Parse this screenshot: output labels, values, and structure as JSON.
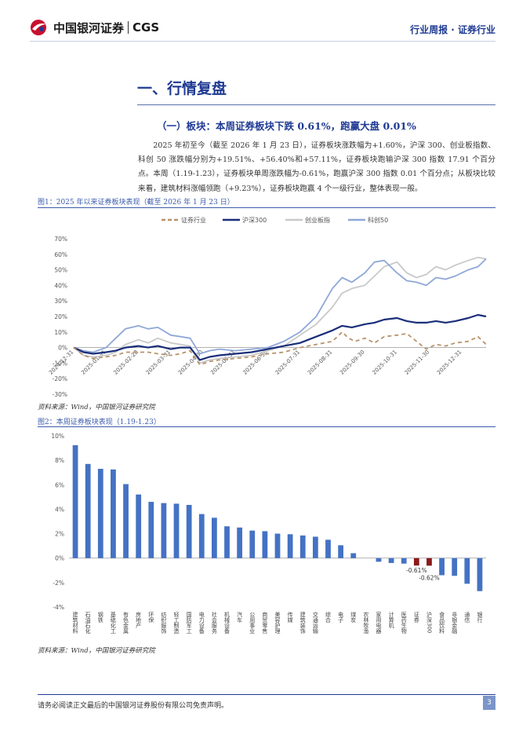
{
  "header": {
    "company_cn": "中国银河证券",
    "company_en": "CGS",
    "report_type": "行业周报 · 证券行业"
  },
  "section": {
    "title": "一、行情复盘",
    "subtitle": "（一）板块：本周证券板块下跌 0.61%，跑赢大盘 0.01%",
    "paragraph": "2025 年初至今（截至 2026 年 1 月 23 日），证券板块涨跌幅为+1.60%，沪深 300、创业板指数、科创 50 涨跌幅分别为+19.51%、+56.40%和+57.11%，证券板块跑输沪深 300 指数 17.91 个百分点。本周（1.19-1.23），证券板块单周涨跌幅为-0.61%，跑赢沪深 300 指数 0.01 个百分点；从板块比较来看，建筑材料涨幅领跑（+9.23%），证券板块跑赢 4 个一级行业，整体表现一般。"
  },
  "figure1": {
    "title": "图1：2025 年以来证券板块表现（截至 2026 年 1 月 23 日）",
    "source": "资料来源：Wind，中国银河证券研究院",
    "chart_data": {
      "type": "line",
      "title": "",
      "x": [
        "2024-12-31",
        "2025-01-31",
        "2025-02-28",
        "2025-03-31",
        "2025-04-30",
        "2025-05-31",
        "2025-06-30",
        "2025-07-31",
        "2025-08-31",
        "2025-09-30",
        "2025-10-31",
        "2025-11-30",
        "2025-12-31"
      ],
      "x_tick_labels": [
        "2024-12-31",
        "2025-01-31",
        "2025-02-28",
        "2025-03-31",
        "2025-04-30",
        "2025-05-31",
        "2025-06-30",
        "2025-07-31",
        "2025-08-31",
        "2025-09-30",
        "2025-10-31",
        "2025-11-30",
        "2025-12-31"
      ],
      "ylim": [
        -30,
        70
      ],
      "y_ticks": [
        "70%",
        "60%",
        "50%",
        "40%",
        "30%",
        "20%",
        "10%",
        "0%",
        "-10%",
        "-20%",
        "-30%"
      ],
      "x_range": [
        0,
        12.75
      ],
      "series": [
        {
          "name": "证券行业",
          "color": "#b8946a",
          "dash": true,
          "points": [
            [
              0,
              0
            ],
            [
              0.3,
              -5
            ],
            [
              0.6,
              -7
            ],
            [
              1,
              -6
            ],
            [
              1.3,
              -5
            ],
            [
              1.6,
              -3
            ],
            [
              2,
              -3
            ],
            [
              2.3,
              -3
            ],
            [
              2.6,
              -4
            ],
            [
              3,
              -5
            ],
            [
              3.3,
              -4
            ],
            [
              3.6,
              -2
            ],
            [
              3.9,
              -11
            ],
            [
              4.2,
              -9
            ],
            [
              4.5,
              -8
            ],
            [
              5,
              -7
            ],
            [
              5.5,
              -6
            ],
            [
              6,
              -4
            ],
            [
              6.5,
              -3
            ],
            [
              7,
              0
            ],
            [
              7.5,
              2
            ],
            [
              8,
              4
            ],
            [
              8.3,
              10
            ],
            [
              8.5,
              6
            ],
            [
              8.7,
              4
            ],
            [
              9,
              6
            ],
            [
              9.3,
              3
            ],
            [
              9.6,
              7
            ],
            [
              10,
              8
            ],
            [
              10.3,
              9
            ],
            [
              10.6,
              4
            ],
            [
              10.9,
              -1
            ],
            [
              11.2,
              2
            ],
            [
              11.5,
              1
            ],
            [
              11.8,
              3
            ],
            [
              12.2,
              4
            ],
            [
              12.5,
              7
            ],
            [
              12.75,
              2
            ]
          ]
        },
        {
          "name": "沪深300",
          "color": "#1a2e7a",
          "dash": false,
          "points": [
            [
              0,
              0
            ],
            [
              0.3,
              -3
            ],
            [
              0.6,
              -4
            ],
            [
              1,
              -3
            ],
            [
              1.3,
              -2
            ],
            [
              1.6,
              0
            ],
            [
              2,
              1
            ],
            [
              2.3,
              0
            ],
            [
              2.6,
              1
            ],
            [
              3,
              -1
            ],
            [
              3.3,
              0
            ],
            [
              3.6,
              0
            ],
            [
              3.9,
              -8
            ],
            [
              4.2,
              -6
            ],
            [
              4.5,
              -5
            ],
            [
              5,
              -4
            ],
            [
              5.5,
              -3
            ],
            [
              6,
              -1
            ],
            [
              6.5,
              1
            ],
            [
              7,
              3
            ],
            [
              7.5,
              7
            ],
            [
              8,
              11
            ],
            [
              8.3,
              14
            ],
            [
              8.6,
              13
            ],
            [
              9,
              15
            ],
            [
              9.3,
              16
            ],
            [
              9.6,
              18
            ],
            [
              10,
              19
            ],
            [
              10.3,
              17
            ],
            [
              10.6,
              16
            ],
            [
              10.9,
              16
            ],
            [
              11.2,
              17
            ],
            [
              11.5,
              16
            ],
            [
              11.8,
              17
            ],
            [
              12.2,
              19
            ],
            [
              12.5,
              21
            ],
            [
              12.75,
              20
            ]
          ]
        },
        {
          "name": "创业板指",
          "color": "#c9c9c9",
          "dash": false,
          "points": [
            [
              0,
              0
            ],
            [
              0.3,
              -5
            ],
            [
              0.6,
              -6
            ],
            [
              1,
              -5
            ],
            [
              1.3,
              -3
            ],
            [
              1.6,
              2
            ],
            [
              2,
              5
            ],
            [
              2.3,
              3
            ],
            [
              2.6,
              6
            ],
            [
              3,
              3
            ],
            [
              3.3,
              2
            ],
            [
              3.6,
              1
            ],
            [
              3.9,
              -10
            ],
            [
              4.2,
              -8
            ],
            [
              4.5,
              -7
            ],
            [
              5,
              -6
            ],
            [
              5.5,
              -5
            ],
            [
              6,
              -2
            ],
            [
              6.5,
              1
            ],
            [
              7,
              8
            ],
            [
              7.5,
              15
            ],
            [
              8,
              26
            ],
            [
              8.3,
              35
            ],
            [
              8.6,
              38
            ],
            [
              9,
              40
            ],
            [
              9.3,
              46
            ],
            [
              9.6,
              52
            ],
            [
              10,
              55
            ],
            [
              10.3,
              48
            ],
            [
              10.6,
              45
            ],
            [
              10.9,
              47
            ],
            [
              11.2,
              52
            ],
            [
              11.5,
              50
            ],
            [
              11.8,
              53
            ],
            [
              12.2,
              56
            ],
            [
              12.5,
              58
            ],
            [
              12.75,
              57
            ]
          ]
        },
        {
          "name": "科创50",
          "color": "#8fa8d8",
          "dash": false,
          "points": [
            [
              0,
              0
            ],
            [
              0.3,
              -2
            ],
            [
              0.6,
              -3
            ],
            [
              1,
              0
            ],
            [
              1.3,
              6
            ],
            [
              1.6,
              12
            ],
            [
              2,
              14
            ],
            [
              2.3,
              12
            ],
            [
              2.6,
              13
            ],
            [
              3,
              8
            ],
            [
              3.3,
              7
            ],
            [
              3.6,
              6
            ],
            [
              3.9,
              -4
            ],
            [
              4.2,
              -2
            ],
            [
              4.5,
              -1
            ],
            [
              5,
              -2
            ],
            [
              5.5,
              -1
            ],
            [
              6,
              0
            ],
            [
              6.5,
              4
            ],
            [
              7,
              10
            ],
            [
              7.5,
              20
            ],
            [
              8,
              38
            ],
            [
              8.3,
              45
            ],
            [
              8.6,
              42
            ],
            [
              9,
              48
            ],
            [
              9.3,
              55
            ],
            [
              9.6,
              56
            ],
            [
              10,
              48
            ],
            [
              10.3,
              43
            ],
            [
              10.6,
              42
            ],
            [
              10.9,
              40
            ],
            [
              11.2,
              45
            ],
            [
              11.5,
              44
            ],
            [
              11.8,
              46
            ],
            [
              12.2,
              50
            ],
            [
              12.5,
              52
            ],
            [
              12.75,
              57
            ]
          ]
        }
      ]
    }
  },
  "figure2": {
    "title": "图2：本周证券板块表现（1.19-1.23）",
    "source": "资料来源：Wind，中国银河证券研究院",
    "chart_data": {
      "type": "bar",
      "categories": [
        "建筑材料",
        "石油石化",
        "钢铁",
        "基础化工",
        "有色金属",
        "房地产",
        "环保",
        "纺织服饰",
        "轻工制造",
        "国防军工",
        "电力设备",
        "社会服务",
        "机械设备",
        "汽车",
        "公用事业",
        "商贸零售",
        "美容护理",
        "传媒",
        "建筑装饰",
        "交通运输",
        "综合",
        "电子",
        "煤炭",
        "农林牧渔",
        "家用电器",
        "计算机",
        "医药生物",
        "证券",
        "沪深300",
        "食品饮料",
        "非银金融",
        "通信",
        "银行"
      ],
      "values": [
        9.23,
        7.7,
        7.3,
        7.25,
        6.05,
        5.2,
        4.6,
        4.5,
        4.45,
        4.35,
        3.6,
        3.3,
        2.6,
        2.5,
        2.25,
        2.2,
        2.0,
        1.95,
        1.85,
        1.75,
        1.5,
        1.05,
        0.4,
        0.0,
        -0.3,
        -0.4,
        -0.45,
        -0.61,
        -0.62,
        -1.4,
        -1.45,
        -2.1,
        -2.7
      ],
      "highlight": [
        "证券",
        "沪深300"
      ],
      "data_labels": {
        "证券": "-0.61%",
        "沪深300": "-0.62%"
      },
      "ylim": [
        -4,
        10
      ],
      "y_ticks": [
        "10%",
        "8%",
        "6%",
        "4%",
        "2%",
        "0%",
        "-2%",
        "-4%"
      ],
      "colors": {
        "default": "#4472c4",
        "highlight": "#8b1a1a"
      }
    }
  },
  "footer": {
    "disclaimer": "请务必阅读正文最后的中国银河证券股份有限公司免责声明。",
    "page": "3"
  }
}
